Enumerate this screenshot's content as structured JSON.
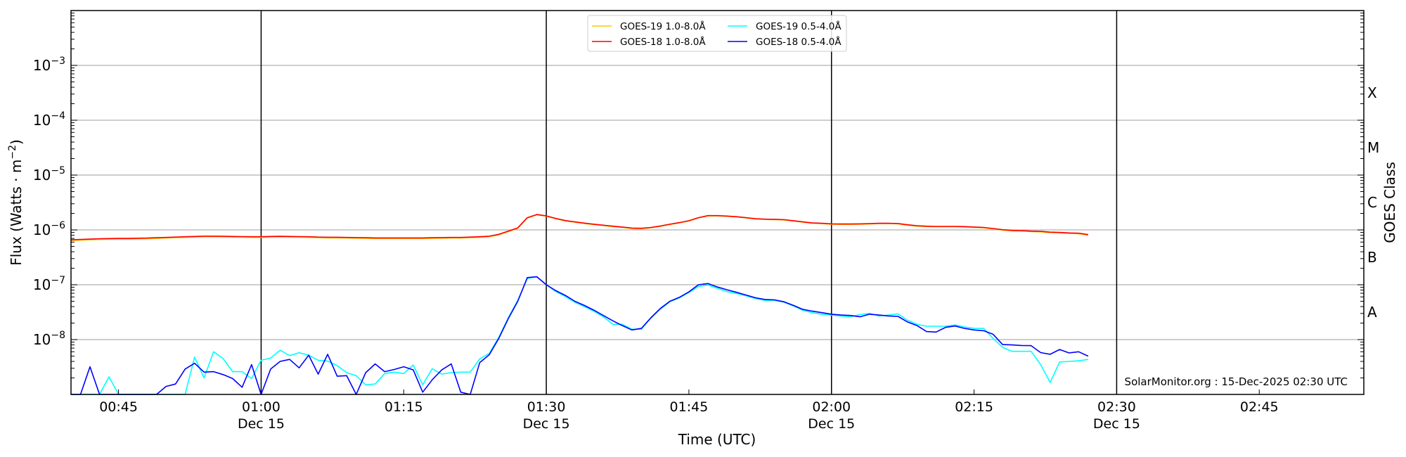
{
  "chart_data": {
    "type": "line",
    "title": "",
    "xlabel": "Time (UTC)",
    "ylabel_prefix": "Flux (Watts · m",
    "ylabel_exponent": "−2",
    "ylabel_suffix": ")",
    "y2label": "GOES Class",
    "yscale": "log",
    "ylim": [
      1e-09,
      0.01
    ],
    "xlim_minutes_from_start": [
      0,
      136
    ],
    "start_time": "00:40",
    "interval_minutes": 1,
    "grid": "horizontal at decades",
    "x_ticks": [
      {
        "minute": 5,
        "label": "00:45",
        "date": ""
      },
      {
        "minute": 20,
        "label": "01:00",
        "date": "Dec 15"
      },
      {
        "minute": 35,
        "label": "01:15",
        "date": ""
      },
      {
        "minute": 50,
        "label": "01:30",
        "date": "Dec 15"
      },
      {
        "minute": 65,
        "label": "01:45",
        "date": ""
      },
      {
        "minute": 80,
        "label": "02:00",
        "date": "Dec 15"
      },
      {
        "minute": 95,
        "label": "02:15",
        "date": ""
      },
      {
        "minute": 110,
        "label": "02:30",
        "date": "Dec 15"
      },
      {
        "minute": 125,
        "label": "02:45",
        "date": ""
      }
    ],
    "y_ticks": [
      {
        "value": 0.001,
        "base": "10",
        "exponent": "−3"
      },
      {
        "value": 0.0001,
        "base": "10",
        "exponent": "−4"
      },
      {
        "value": 1e-05,
        "base": "10",
        "exponent": "−5"
      },
      {
        "value": 1e-06,
        "base": "10",
        "exponent": "−6"
      },
      {
        "value": 1e-07,
        "base": "10",
        "exponent": "−7"
      },
      {
        "value": 1e-08,
        "base": "10",
        "exponent": "−8"
      }
    ],
    "class_labels": [
      {
        "label": "X",
        "value": 0.000316
      },
      {
        "label": "M",
        "value": 3.16e-05
      },
      {
        "label": "C",
        "value": 3.16e-06
      },
      {
        "label": "B",
        "value": 3.16e-07
      },
      {
        "label": "A",
        "value": 3.16e-08
      }
    ],
    "legend": {
      "position": "top-center",
      "columns": 2
    },
    "annotation": "SolarMonitor.org : 15-Dec-2025 02:30 UTC",
    "series": [
      {
        "name": "GOES-19 1.0-8.0Å",
        "color": "#ffc800",
        "legend_order": 0,
        "values": [
          6.4e-07,
          6.5e-07,
          6.6e-07,
          6.7e-07,
          6.75e-07,
          6.8e-07,
          6.8e-07,
          6.85e-07,
          6.9e-07,
          7e-07,
          7.1e-07,
          7.2e-07,
          7.3e-07,
          7.4e-07,
          7.5e-07,
          7.5e-07,
          7.45e-07,
          7.4e-07,
          7.35e-07,
          7.3e-07,
          7.3e-07,
          7.4e-07,
          7.45e-07,
          7.4e-07,
          7.35e-07,
          7.3e-07,
          7.2e-07,
          7.15e-07,
          7.15e-07,
          7.1e-07,
          7.05e-07,
          7e-07,
          6.95e-07,
          6.95e-07,
          6.95e-07,
          6.95e-07,
          6.95e-07,
          6.95e-07,
          7e-07,
          7.05e-07,
          7.1e-07,
          7.1e-07,
          7.2e-07,
          7.3e-07,
          7.5e-07,
          8.1e-07,
          9.3e-07,
          1.07e-06,
          1.64e-06,
          1.88e-06,
          1.78e-06,
          1.6e-06,
          1.46e-06,
          1.38e-06,
          1.31e-06,
          1.25e-06,
          1.2e-06,
          1.15e-06,
          1.11e-06,
          1.06e-06,
          1.05e-06,
          1.09e-06,
          1.16e-06,
          1.25e-06,
          1.34e-06,
          1.45e-06,
          1.65e-06,
          1.8e-06,
          1.8e-06,
          1.77e-06,
          1.72e-06,
          1.65e-06,
          1.58e-06,
          1.55e-06,
          1.54e-06,
          1.52e-06,
          1.45e-06,
          1.38e-06,
          1.32e-06,
          1.3e-06,
          1.27e-06,
          1.26e-06,
          1.26e-06,
          1.27e-06,
          1.28e-06,
          1.3e-06,
          1.3e-06,
          1.29e-06,
          1.22e-06,
          1.17e-06,
          1.15e-06,
          1.14e-06,
          1.14e-06,
          1.14e-06,
          1.13e-06,
          1.11e-06,
          1.09e-06,
          1.04e-06,
          9.9e-07,
          9.6e-07,
          9.5e-07,
          9.3e-07,
          9.2e-07,
          8.9e-07,
          8.8e-07,
          8.6e-07,
          8.5e-07,
          8e-07
        ]
      },
      {
        "name": "GOES-18 1.0-8.0Å",
        "color": "#ff0000",
        "legend_order": 1,
        "values": [
          6.6e-07,
          6.7e-07,
          6.8e-07,
          6.9e-07,
          6.95e-07,
          7e-07,
          7e-07,
          7.05e-07,
          7.1e-07,
          7.2e-07,
          7.3e-07,
          7.4e-07,
          7.5e-07,
          7.6e-07,
          7.7e-07,
          7.7e-07,
          7.65e-07,
          7.6e-07,
          7.55e-07,
          7.5e-07,
          7.5e-07,
          7.6e-07,
          7.65e-07,
          7.6e-07,
          7.55e-07,
          7.5e-07,
          7.4e-07,
          7.35e-07,
          7.35e-07,
          7.3e-07,
          7.25e-07,
          7.2e-07,
          7.15e-07,
          7.15e-07,
          7.15e-07,
          7.15e-07,
          7.15e-07,
          7.15e-07,
          7.2e-07,
          7.25e-07,
          7.3e-07,
          7.3e-07,
          7.4e-07,
          7.5e-07,
          7.7e-07,
          8.3e-07,
          9.5e-07,
          1.09e-06,
          1.67e-06,
          1.91e-06,
          1.8e-06,
          1.62e-06,
          1.48e-06,
          1.4e-06,
          1.33e-06,
          1.27e-06,
          1.22e-06,
          1.17e-06,
          1.13e-06,
          1.08e-06,
          1.07e-06,
          1.11e-06,
          1.18e-06,
          1.27e-06,
          1.36e-06,
          1.47e-06,
          1.67e-06,
          1.82e-06,
          1.82e-06,
          1.79e-06,
          1.74e-06,
          1.67e-06,
          1.6e-06,
          1.57e-06,
          1.56e-06,
          1.54e-06,
          1.47e-06,
          1.4e-06,
          1.34e-06,
          1.32e-06,
          1.29e-06,
          1.28e-06,
          1.28e-06,
          1.29e-06,
          1.3e-06,
          1.32e-06,
          1.32e-06,
          1.31e-06,
          1.24e-06,
          1.19e-06,
          1.17e-06,
          1.16e-06,
          1.16e-06,
          1.16e-06,
          1.15e-06,
          1.13e-06,
          1.11e-06,
          1.06e-06,
          1.01e-06,
          9.8e-07,
          9.7e-07,
          9.5e-07,
          9.4e-07,
          9.1e-07,
          9e-07,
          8.8e-07,
          8.7e-07,
          8.2e-07
        ]
      },
      {
        "name": "GOES-19 0.5-4.0Å",
        "color": "#00ffff",
        "legend_order": 2,
        "values": [
          1e-09,
          1e-09,
          1e-09,
          1e-09,
          2.1e-09,
          1e-09,
          1e-09,
          1e-09,
          1e-09,
          1e-09,
          1e-09,
          1e-09,
          1e-09,
          4.8e-09,
          2e-09,
          6e-09,
          4.5e-09,
          2.6e-09,
          2.6e-09,
          1.95e-09,
          4.2e-09,
          4.6e-09,
          6.4e-09,
          5.1e-09,
          5.75e-09,
          5.2e-09,
          4.2e-09,
          4.05e-09,
          3.35e-09,
          2.5e-09,
          2.2e-09,
          1.5e-09,
          1.55e-09,
          2.4e-09,
          2.55e-09,
          2.4e-09,
          3.45e-09,
          1.5e-09,
          2.95e-09,
          2.35e-09,
          2.5e-09,
          2.55e-09,
          2.55e-09,
          4.45e-09,
          5.6e-09,
          1.1e-08,
          2.5e-08,
          5.2e-08,
          1.3e-07,
          1.4e-07,
          1e-07,
          7.5e-08,
          6.1e-08,
          4.8e-08,
          4e-08,
          3.3e-08,
          2.6e-08,
          1.9e-08,
          1.9e-08,
          1.55e-08,
          1.55e-08,
          2.45e-08,
          3.6e-08,
          4.9e-08,
          5.8e-08,
          7.2e-08,
          9.3e-08,
          9.9e-08,
          8.6e-08,
          7.5e-08,
          6.95e-08,
          6.3e-08,
          5.6e-08,
          5.2e-08,
          5.2e-08,
          4.8e-08,
          4.1e-08,
          3.4e-08,
          3.1e-08,
          2.9e-08,
          2.8e-08,
          2.7e-08,
          2.6e-08,
          2.85e-08,
          3e-08,
          2.7e-08,
          2.8e-08,
          2.95e-08,
          2.25e-08,
          1.9e-08,
          1.75e-08,
          1.75e-08,
          1.75e-08,
          1.85e-08,
          1.7e-08,
          1.6e-08,
          1.6e-08,
          1.05e-08,
          7.2e-09,
          6.1e-09,
          6.1e-09,
          6.1e-09,
          3.5e-09,
          1.65e-09,
          3.9e-09,
          4e-09,
          4.1e-09,
          4.35e-09
        ]
      },
      {
        "name": "GOES-18 0.5-4.0Å",
        "color": "#0000ff",
        "legend_order": 3,
        "values": [
          1e-09,
          1e-09,
          3.2e-09,
          1e-09,
          1e-09,
          1e-09,
          1e-09,
          1e-09,
          1e-09,
          1e-09,
          1.4e-09,
          1.55e-09,
          2.9e-09,
          3.7e-09,
          2.55e-09,
          2.6e-09,
          2.3e-09,
          1.95e-09,
          1.35e-09,
          3.5e-09,
          1e-09,
          2.9e-09,
          4e-09,
          4.35e-09,
          3.05e-09,
          5.2e-09,
          2.35e-09,
          5.4e-09,
          2.15e-09,
          2.2e-09,
          1e-09,
          2.5e-09,
          3.6e-09,
          2.6e-09,
          2.85e-09,
          3.2e-09,
          2.8e-09,
          1.1e-09,
          1.85e-09,
          2.8e-09,
          3.6e-09,
          1.1e-09,
          1e-09,
          3.8e-09,
          5.3e-09,
          1.05e-08,
          2.4e-08,
          5e-08,
          1.35e-07,
          1.4e-07,
          1e-07,
          7.8e-08,
          6.4e-08,
          5e-08,
          4.2e-08,
          3.45e-08,
          2.75e-08,
          2.2e-08,
          1.8e-08,
          1.5e-08,
          1.6e-08,
          2.5e-08,
          3.7e-08,
          5e-08,
          5.9e-08,
          7.4e-08,
          1e-07,
          1.05e-07,
          9.1e-08,
          8.1e-08,
          7.3e-08,
          6.5e-08,
          5.8e-08,
          5.4e-08,
          5.3e-08,
          4.9e-08,
          4.2e-08,
          3.55e-08,
          3.3e-08,
          3.1e-08,
          2.9e-08,
          2.8e-08,
          2.75e-08,
          2.6e-08,
          2.9e-08,
          2.8e-08,
          2.7e-08,
          2.65e-08,
          2.1e-08,
          1.8e-08,
          1.4e-08,
          1.37e-08,
          1.67e-08,
          1.77e-08,
          1.6e-08,
          1.5e-08,
          1.45e-08,
          1.25e-08,
          8.1e-09,
          8e-09,
          7.8e-09,
          7.75e-09,
          5.8e-09,
          5.4e-09,
          6.6e-09,
          5.7e-09,
          6e-09,
          5e-09
        ]
      }
    ]
  }
}
